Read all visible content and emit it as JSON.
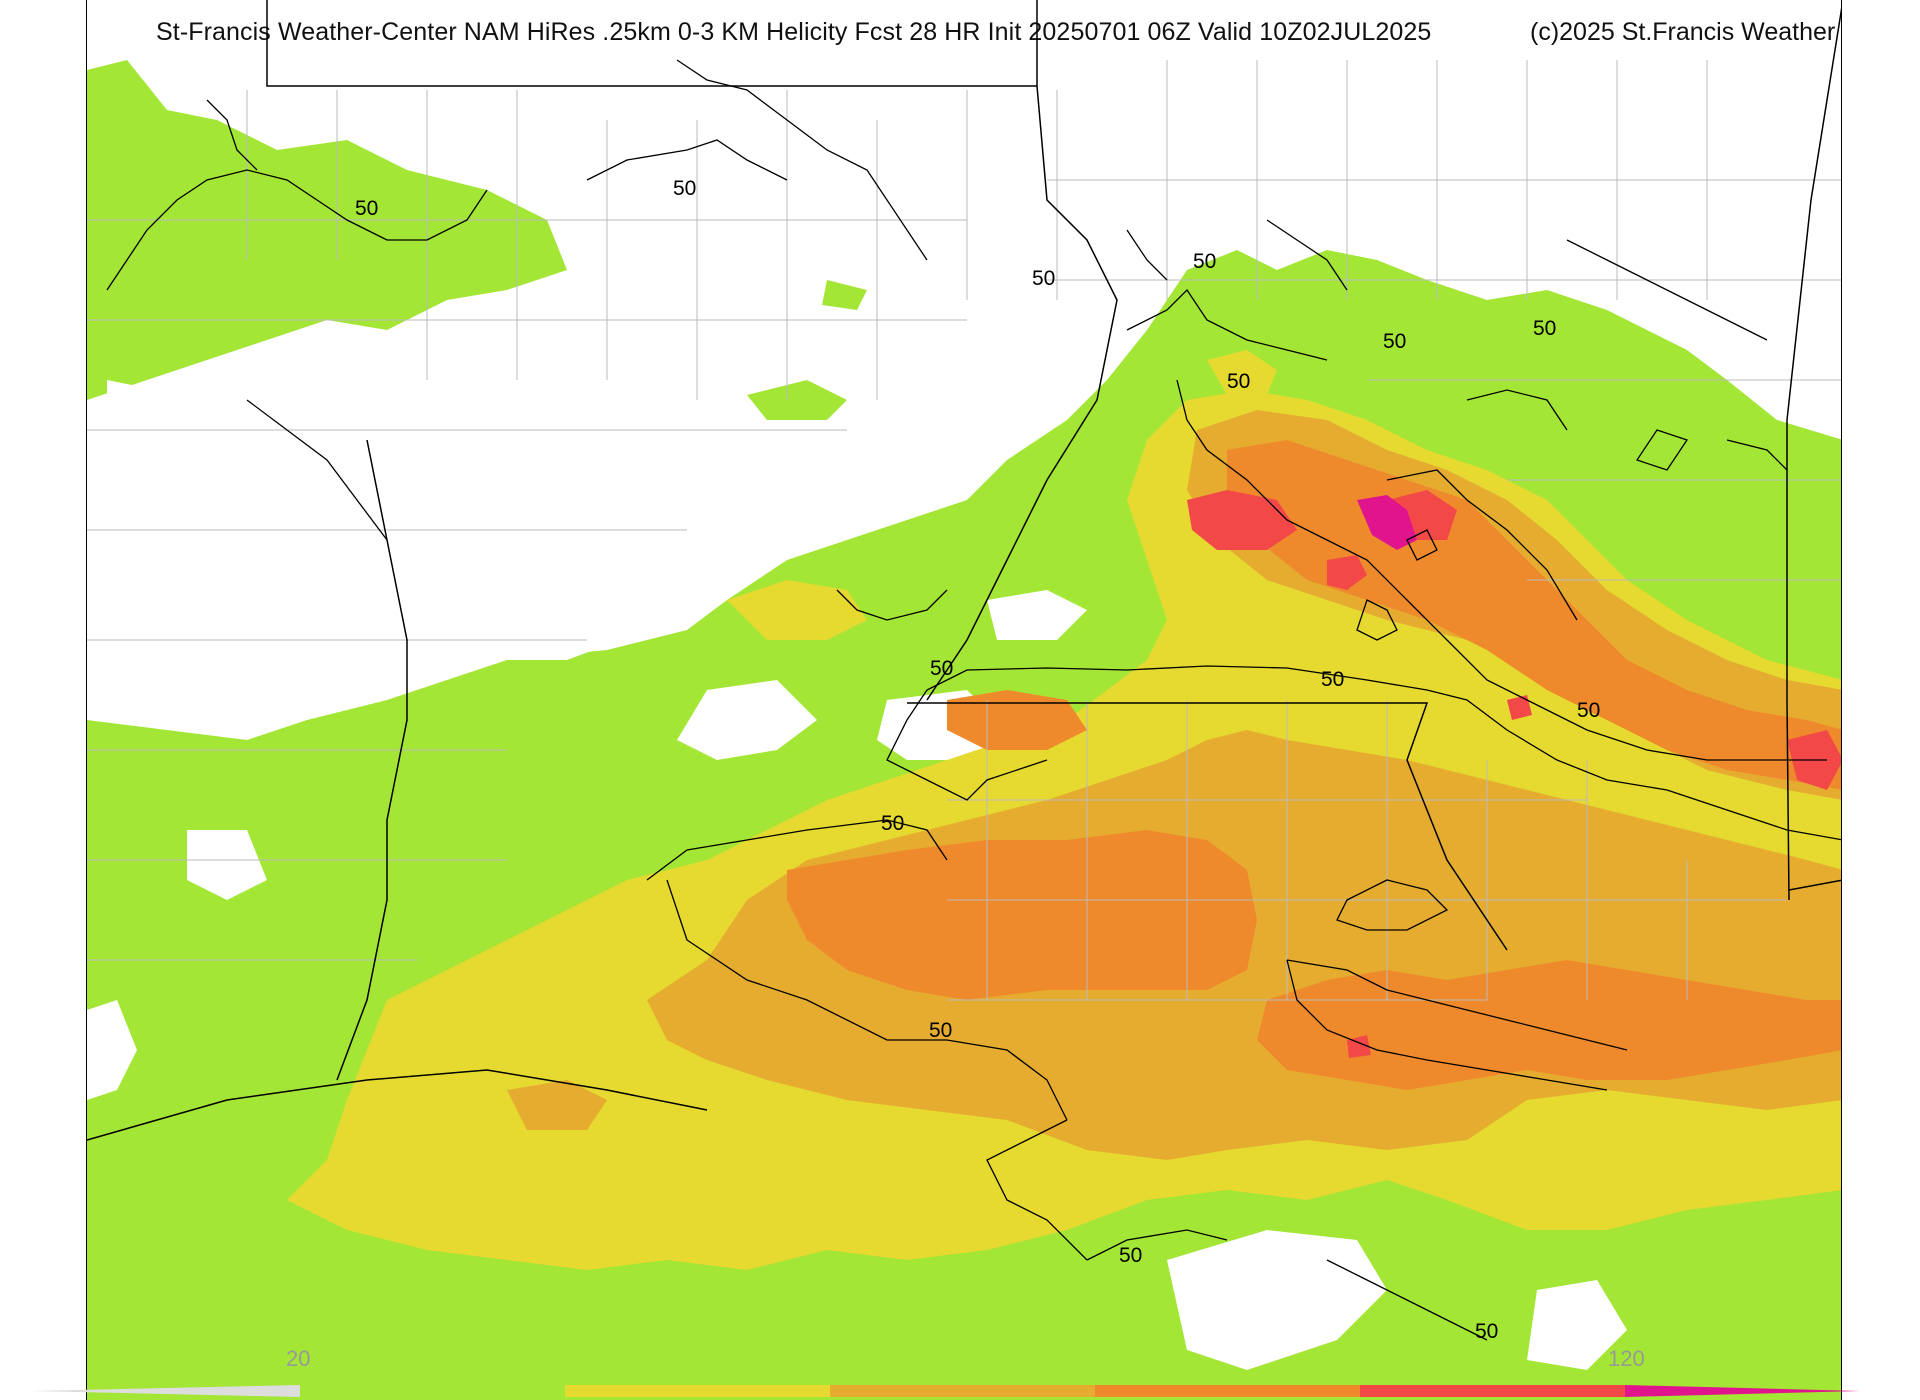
{
  "title": "St-Francis Weather-Center NAM HiRes .25km 0-3 KM Helicity Fcst 28 HR Init 20250701 06Z  Valid 10Z02JUL2025",
  "copyright": "(c)2025 St.Francis Weather",
  "contour_value": "50",
  "colorbar": {
    "tick_low": "20",
    "tick_high": "120",
    "colors": [
      "#a3e635",
      "#e6d930",
      "#e5ac30",
      "#ef8a2c",
      "#f24848",
      "#e0148c"
    ]
  },
  "shading_colors": {
    "level_20": "#a3e635",
    "level_40": "#e6d930",
    "level_60": "#e5ac30",
    "level_80": "#ef8a2c",
    "level_100": "#f24848",
    "level_120": "#e0148c"
  }
}
